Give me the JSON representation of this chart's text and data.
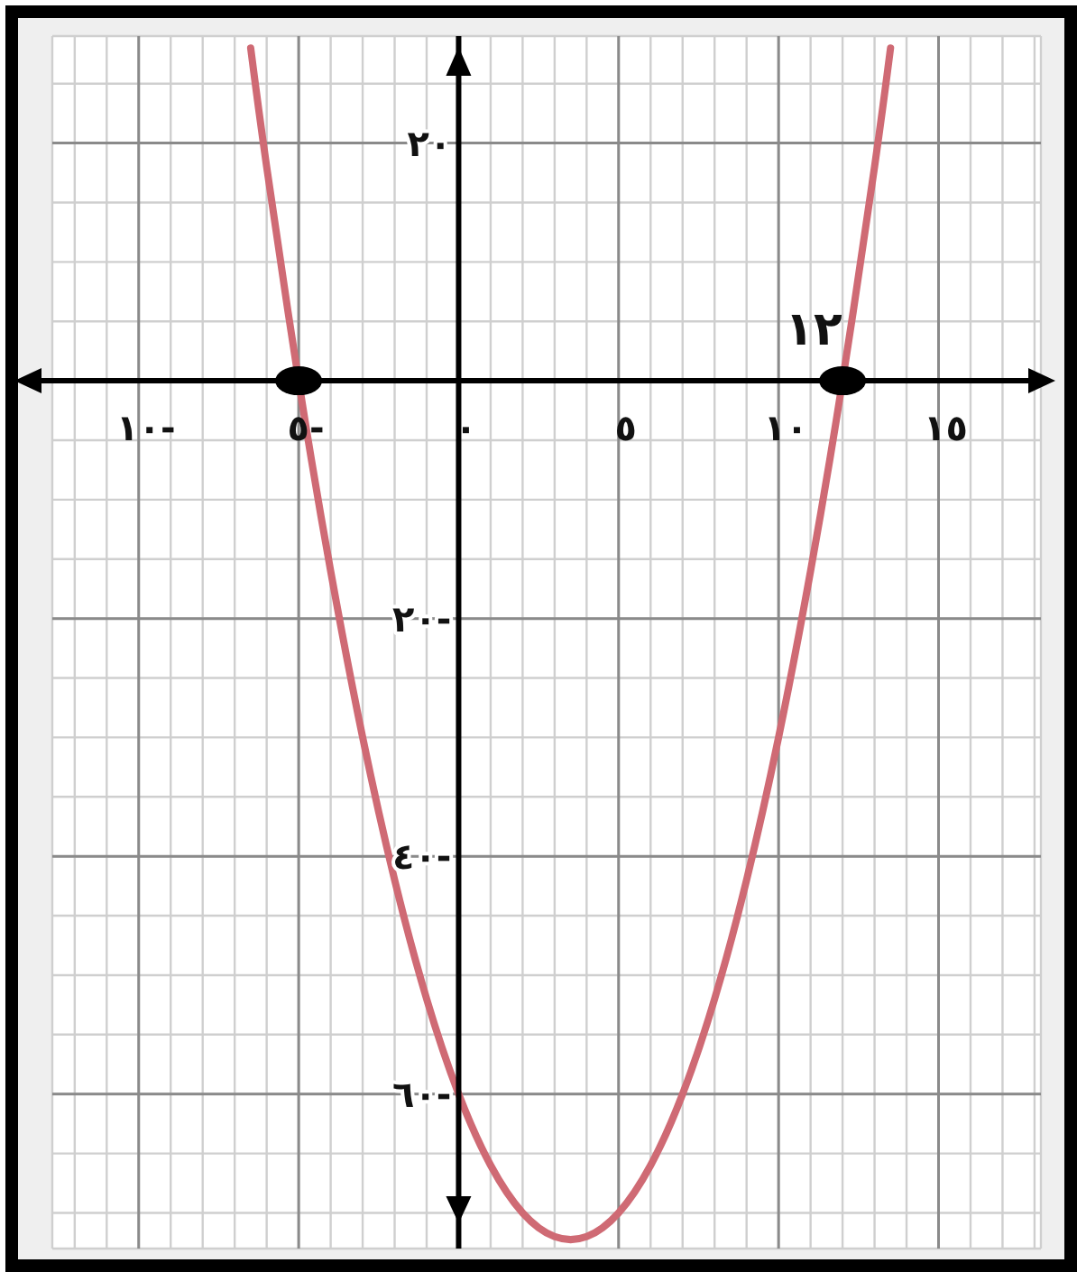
{
  "chart_data": {
    "type": "line",
    "series": [
      {
        "type": "line",
        "color": "#cf6a74",
        "marker": "none",
        "x": [
          -6.5,
          -6,
          -5,
          -4,
          -3,
          -2,
          -1,
          0,
          1,
          2,
          3,
          4,
          5,
          6,
          7,
          8,
          9,
          10,
          11,
          12,
          13,
          13.5
        ],
        "values": [
          28,
          18,
          0,
          -16,
          -30,
          -42,
          -52,
          -60,
          -66,
          -70,
          -72,
          -72,
          -70,
          -66,
          -60,
          -52,
          -42,
          -30,
          -16,
          0,
          18,
          28
        ]
      },
      {
        "type": "scatter",
        "color": "#000000",
        "marker": "circle",
        "x": [
          -5,
          12
        ],
        "values": [
          0,
          0
        ]
      }
    ],
    "xlim": [
      -12.7,
      18.2
    ],
    "ylim": [
      -73,
      29
    ],
    "xticks": [
      {
        "value": -12,
        "label": null
      },
      {
        "value": -11,
        "label": null
      },
      {
        "value": -10,
        "label": "١٠-"
      },
      {
        "value": -9,
        "label": null
      },
      {
        "value": -8,
        "label": null
      },
      {
        "value": -7,
        "label": null
      },
      {
        "value": -6,
        "label": null
      },
      {
        "value": -5,
        "label": "٥-"
      },
      {
        "value": -4,
        "label": null
      },
      {
        "value": -3,
        "label": null
      },
      {
        "value": -2,
        "label": null
      },
      {
        "value": -1,
        "label": null
      },
      {
        "value": 0,
        "label": "٠"
      },
      {
        "value": 1,
        "label": null
      },
      {
        "value": 2,
        "label": null
      },
      {
        "value": 3,
        "label": null
      },
      {
        "value": 4,
        "label": null
      },
      {
        "value": 5,
        "label": "٥"
      },
      {
        "value": 6,
        "label": null
      },
      {
        "value": 7,
        "label": null
      },
      {
        "value": 8,
        "label": null
      },
      {
        "value": 9,
        "label": null
      },
      {
        "value": 10,
        "label": "١٠"
      },
      {
        "value": 11,
        "label": null
      },
      {
        "value": 12,
        "label": null
      },
      {
        "value": 13,
        "label": null
      },
      {
        "value": 14,
        "label": null
      },
      {
        "value": 15,
        "label": "١٥"
      },
      {
        "value": 16,
        "label": null
      },
      {
        "value": 17,
        "label": null
      },
      {
        "value": 18,
        "label": null
      }
    ],
    "yticks": [
      {
        "value": -70,
        "label": null
      },
      {
        "value": -65,
        "label": null
      },
      {
        "value": -60,
        "label": "٦٠-"
      },
      {
        "value": -55,
        "label": null
      },
      {
        "value": -50,
        "label": null
      },
      {
        "value": -45,
        "label": null
      },
      {
        "value": -40,
        "label": "٤٠-"
      },
      {
        "value": -35,
        "label": null
      },
      {
        "value": -30,
        "label": null
      },
      {
        "value": -25,
        "label": null
      },
      {
        "value": -20,
        "label": "٢٠-"
      },
      {
        "value": -15,
        "label": null
      },
      {
        "value": -10,
        "label": null
      },
      {
        "value": -5,
        "label": null
      },
      {
        "value": 0,
        "label": null
      },
      {
        "value": 5,
        "label": null
      },
      {
        "value": 10,
        "label": null
      },
      {
        "value": 15,
        "label": null
      },
      {
        "value": 20,
        "label": "٢٠"
      },
      {
        "value": 25,
        "label": null
      }
    ],
    "grid": true,
    "annotations": [
      {
        "text": "١٢",
        "x": 12,
        "y": 0
      }
    ]
  }
}
